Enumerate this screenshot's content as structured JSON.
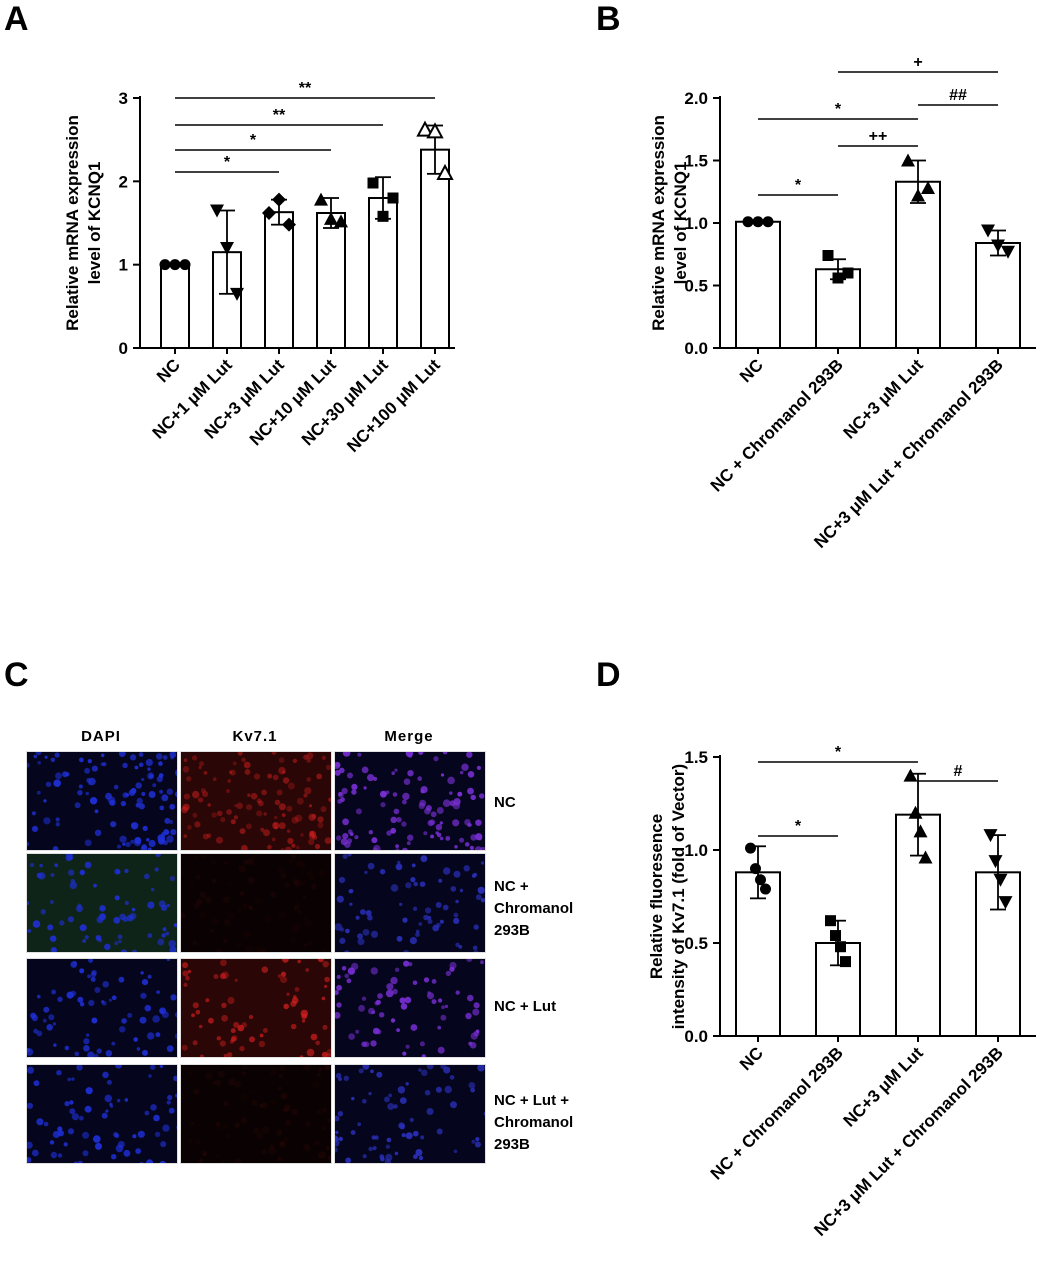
{
  "panels": [
    {
      "letter": "A"
    },
    {
      "letter": "B"
    },
    {
      "letter": "C"
    },
    {
      "letter": "D"
    }
  ],
  "chart_data": [
    {
      "type": "bar",
      "ylabel": "Relative mRNA expression level of KCNQ1",
      "ylabel_lines": [
        "Relative mRNA expression",
        "level of KCNQ1"
      ],
      "ylim": [
        0,
        3
      ],
      "yticks": [
        "0",
        "1",
        "2",
        "3"
      ],
      "categories": [
        "NC",
        "NC+1 μM  Lut",
        "NC+3 μM Lut",
        "NC+10 μM Lut",
        "NC+30 μM Lut",
        "NC+100 μM Lut"
      ],
      "values": [
        1.0,
        1.15,
        1.63,
        1.62,
        1.8,
        2.38
      ],
      "errors": [
        0.01,
        0.5,
        0.15,
        0.18,
        0.25,
        0.29
      ],
      "markers": [
        "circle",
        "triangle-down",
        "diamond",
        "triangle",
        "square",
        "triangle-open"
      ],
      "points": [
        [
          1.0,
          1.0,
          1.0
        ],
        [
          1.65,
          1.2,
          0.65
        ],
        [
          1.62,
          1.78,
          1.48
        ],
        [
          1.78,
          1.55,
          1.52
        ],
        [
          1.98,
          1.58,
          1.8
        ],
        [
          2.62,
          2.6,
          2.1
        ]
      ],
      "significance": [
        {
          "from": 0,
          "to": 2,
          "label": "*"
        },
        {
          "from": 0,
          "to": 3,
          "label": "*"
        },
        {
          "from": 0,
          "to": 4,
          "label": "**"
        },
        {
          "from": 0,
          "to": 5,
          "label": "**"
        }
      ]
    },
    {
      "type": "bar",
      "ylabel": "Relative mRNA expression level of KCNQ1",
      "ylabel_lines": [
        "Relative mRNA expression",
        "level of KCNQ1"
      ],
      "ylim": [
        0,
        2.0
      ],
      "yticks": [
        "0.0",
        "0.5",
        "1.0",
        "1.5",
        "2.0"
      ],
      "categories": [
        "NC",
        "NC + Chromanol 293B",
        "NC+3 μM  Lut",
        "NC+3 μM  Lut + Chromanol 293B"
      ],
      "values": [
        1.01,
        0.63,
        1.33,
        0.84
      ],
      "errors": [
        0.01,
        0.08,
        0.17,
        0.1
      ],
      "markers": [
        "circle",
        "square",
        "triangle",
        "triangle-down"
      ],
      "points": [
        [
          1.01,
          1.01,
          1.01
        ],
        [
          0.74,
          0.56,
          0.6
        ],
        [
          1.5,
          1.22,
          1.28
        ],
        [
          0.94,
          0.82,
          0.77
        ]
      ],
      "significance": [
        {
          "from": 0,
          "to": 1,
          "label": "*"
        },
        {
          "from": 2,
          "to": 3,
          "label": "##"
        },
        {
          "from": 1,
          "to": 2,
          "label": "++"
        },
        {
          "from": 0,
          "to": 2,
          "label": "*"
        },
        {
          "from": 1,
          "to": 3,
          "label": "+"
        }
      ]
    },
    {
      "type": "bar",
      "ylabel": "Relative fluoresence intensity of Kv7.1 (fold of Vector)",
      "ylabel_lines": [
        "Relative fluoresence",
        "intensity of Kv7.1 (fold of Vector)"
      ],
      "ylim": [
        0,
        1.5
      ],
      "yticks": [
        "0.0",
        "0.5",
        "1.0",
        "1.5"
      ],
      "categories": [
        "NC",
        "NC + Chromanol 293B",
        "NC+3 μM Lut",
        "NC+3 μM Lut + Chromanol 293B"
      ],
      "values": [
        0.88,
        0.5,
        1.19,
        0.88
      ],
      "errors": [
        0.14,
        0.12,
        0.22,
        0.2
      ],
      "markers": [
        "circle",
        "square",
        "triangle",
        "triangle-down"
      ],
      "points": [
        [
          1.01,
          0.9,
          0.84,
          0.79
        ],
        [
          0.62,
          0.54,
          0.48,
          0.4
        ],
        [
          1.4,
          1.2,
          1.1,
          0.96
        ],
        [
          1.08,
          0.94,
          0.84,
          0.72
        ]
      ],
      "significance": [
        {
          "from": 0,
          "to": 1,
          "label": "*"
        },
        {
          "from": 2,
          "to": 3,
          "label": "#"
        },
        {
          "from": 0,
          "to": 2,
          "label": "*"
        }
      ]
    }
  ],
  "microscopy": {
    "columns": [
      "DAPI",
      "Kv7.1",
      "Merge"
    ],
    "rows": [
      {
        "label": "NC"
      },
      {
        "label": "NC +\nChromanol\n293B"
      },
      {
        "label": "NC + Lut"
      },
      {
        "label": "NC + Lut +\nChromanol\n293B"
      }
    ],
    "channel_colors": {
      "dapi": "#1f2fd6",
      "kv71": "#d61f1f",
      "merge": "#7a2fd6",
      "background": "#06061a"
    }
  }
}
